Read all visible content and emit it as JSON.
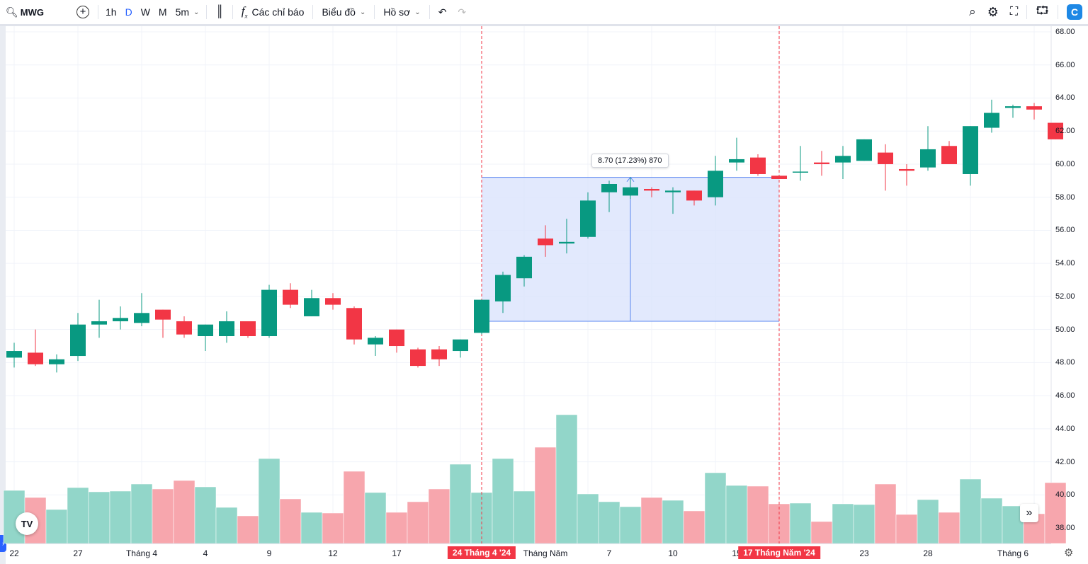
{
  "toolbar": {
    "symbol": "MWG",
    "intervals": [
      "1h",
      "D",
      "W",
      "M",
      "5m"
    ],
    "active_interval": "D",
    "indicators_label": "Các chỉ báo",
    "chart_label": "Biểu đồ",
    "profile_label": "Hồ sơ"
  },
  "colors": {
    "up": "#089981",
    "down": "#f23645",
    "up_vol": "#92d6c9",
    "down_vol": "#f7a6ad",
    "measure_fill": "#dbe4fd",
    "measure_line": "#5b87f0"
  },
  "measure": {
    "label": "8.70 (17.23%) 870",
    "from": 50.5,
    "to": 59.2
  },
  "xaxis": {
    "labels": [
      {
        "t": "22",
        "i": 0
      },
      {
        "t": "27",
        "i": 3
      },
      {
        "t": "Tháng 4",
        "i": 6
      },
      {
        "t": "4",
        "i": 9
      },
      {
        "t": "9",
        "i": 12
      },
      {
        "t": "12",
        "i": 15
      },
      {
        "t": "17",
        "i": 18
      },
      {
        "t": "24 Tháng 4 '24",
        "i": 22,
        "hl": true
      },
      {
        "t": "Tháng Năm",
        "i": 25
      },
      {
        "t": "7",
        "i": 28
      },
      {
        "t": "10",
        "i": 31
      },
      {
        "t": "15",
        "i": 34
      },
      {
        "t": "17 Tháng Năm '24",
        "i": 36,
        "hl": true
      },
      {
        "t": "23",
        "i": 40
      },
      {
        "t": "28",
        "i": 43
      },
      {
        "t": "Tháng 6",
        "i": 47
      }
    ]
  },
  "yaxis": {
    "labels": [
      "68.00",
      "66.00",
      "64.00",
      "62.00",
      "60.00",
      "58.00",
      "56.00",
      "54.00",
      "52.00",
      "50.00",
      "48.00",
      "46.00",
      "44.00",
      "42.00",
      "40.00",
      "38.00"
    ]
  },
  "logo": "TV",
  "chart_data": {
    "type": "candlestick",
    "ylim": [
      38,
      68
    ],
    "ohlc": [
      [
        48.3,
        49.2,
        47.7,
        48.7
      ],
      [
        48.6,
        50.0,
        47.8,
        47.9
      ],
      [
        47.9,
        48.5,
        47.4,
        48.2
      ],
      [
        48.4,
        51.0,
        48.1,
        50.3
      ],
      [
        50.3,
        51.8,
        49.5,
        50.5
      ],
      [
        50.5,
        51.4,
        50.0,
        50.7
      ],
      [
        50.4,
        52.2,
        50.2,
        51.0
      ],
      [
        51.2,
        51.2,
        49.5,
        50.6
      ],
      [
        50.5,
        50.8,
        49.5,
        49.7
      ],
      [
        49.6,
        50.3,
        48.7,
        50.3
      ],
      [
        49.6,
        51.1,
        49.2,
        50.5
      ],
      [
        50.5,
        50.5,
        49.5,
        49.6
      ],
      [
        49.6,
        52.7,
        49.5,
        52.4
      ],
      [
        52.4,
        52.8,
        51.3,
        51.5
      ],
      [
        50.8,
        52.4,
        50.8,
        51.9
      ],
      [
        51.9,
        52.2,
        51.2,
        51.5
      ],
      [
        51.3,
        51.4,
        49.1,
        49.4
      ],
      [
        49.1,
        49.6,
        48.4,
        49.5
      ],
      [
        50.0,
        50.0,
        48.6,
        49.0
      ],
      [
        48.8,
        48.9,
        47.7,
        47.8
      ],
      [
        48.8,
        49.0,
        47.8,
        48.2
      ],
      [
        48.7,
        49.4,
        48.3,
        49.4
      ],
      [
        49.8,
        51.8,
        49.7,
        51.8
      ],
      [
        51.7,
        53.5,
        51.0,
        53.3
      ],
      [
        53.1,
        54.5,
        52.6,
        54.4
      ],
      [
        55.5,
        56.3,
        54.4,
        55.1
      ],
      [
        55.2,
        56.7,
        54.6,
        55.3
      ],
      [
        55.6,
        58.3,
        55.5,
        57.8
      ],
      [
        58.3,
        59.0,
        57.1,
        58.8
      ],
      [
        58.1,
        59.2,
        57.9,
        58.6
      ],
      [
        58.5,
        58.6,
        58.0,
        58.4
      ],
      [
        58.3,
        58.6,
        57.0,
        58.4
      ],
      [
        58.4,
        58.4,
        57.5,
        57.8
      ],
      [
        58.0,
        60.5,
        57.5,
        59.6
      ],
      [
        60.1,
        61.6,
        59.6,
        60.3
      ],
      [
        60.4,
        60.6,
        59.3,
        59.4
      ],
      [
        59.3,
        59.3,
        59.1,
        59.1
      ],
      [
        59.5,
        61.1,
        59.0,
        59.55
      ],
      [
        60.1,
        60.8,
        59.3,
        60.0
      ],
      [
        60.1,
        61.1,
        59.1,
        60.5
      ],
      [
        60.2,
        61.5,
        60.2,
        61.5
      ],
      [
        60.7,
        61.2,
        58.4,
        60.0
      ],
      [
        59.7,
        60.0,
        58.7,
        59.6
      ],
      [
        59.8,
        62.3,
        59.6,
        60.9
      ],
      [
        61.1,
        61.4,
        60.0,
        60.0
      ],
      [
        59.4,
        62.3,
        58.7,
        62.3
      ],
      [
        62.2,
        63.9,
        61.9,
        63.1
      ],
      [
        63.4,
        63.6,
        62.8,
        63.5
      ],
      [
        63.5,
        63.7,
        62.7,
        63.3
      ],
      [
        62.5,
        62.5,
        61.5,
        61.5
      ]
    ],
    "volume": [
      75,
      65,
      48,
      79,
      73,
      74,
      84,
      77,
      89,
      80,
      51,
      39,
      120,
      63,
      44,
      43,
      102,
      72,
      44,
      59,
      77,
      112,
      72,
      120,
      74,
      136,
      182,
      70,
      59,
      52,
      65,
      61,
      46,
      100,
      82,
      81,
      56,
      57,
      31,
      56,
      55,
      84,
      41,
      62,
      44,
      91,
      64,
      53,
      42,
      86
    ]
  }
}
